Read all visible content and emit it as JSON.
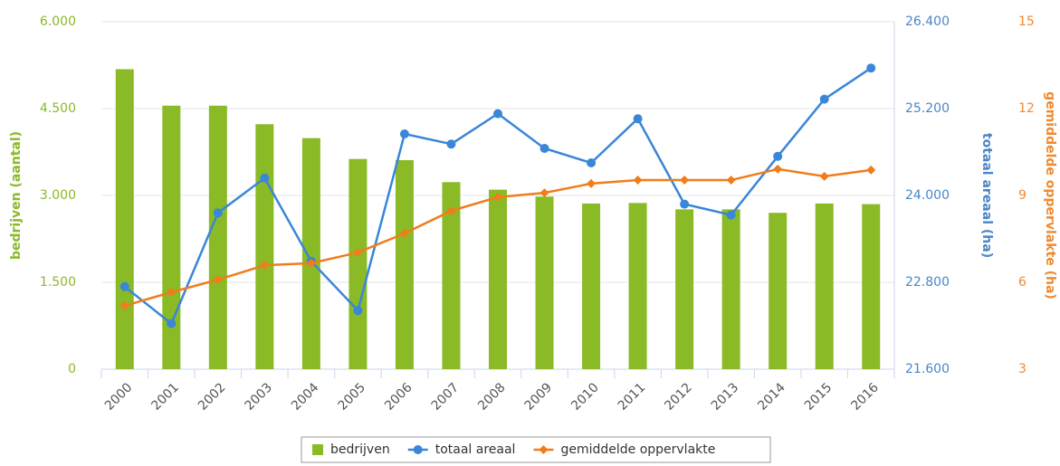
{
  "chart_data": {
    "type": "combo",
    "categories": [
      "2000",
      "2001",
      "2002",
      "2003",
      "2004",
      "2005",
      "2006",
      "2007",
      "2008",
      "2009",
      "2010",
      "2011",
      "2012",
      "2013",
      "2014",
      "2015",
      "2016"
    ],
    "y_label": "bedrijven (aantal)",
    "y2_label": "totaal areaal (ha)",
    "y3_label": "gemiddelde oppervlakte (ha)",
    "ylim": [
      0,
      6000
    ],
    "yticks": [
      0,
      {
        "value": 1500,
        "label": "1.500"
      },
      {
        "value": 3000,
        "label": "3.000"
      },
      {
        "value": 4500,
        "label": "4.500"
      },
      {
        "value": 6000,
        "label": "6.000"
      }
    ],
    "y2lim": [
      21600,
      26400
    ],
    "y2ticks": [
      {
        "value": 21600,
        "label": "21.600"
      },
      {
        "value": 22800,
        "label": "22.800"
      },
      {
        "value": 24000,
        "label": "24.000"
      },
      {
        "value": 25200,
        "label": "25.200"
      },
      {
        "value": 26400,
        "label": "26.400"
      }
    ],
    "y3lim": [
      3,
      15
    ],
    "y3ticks": [
      3,
      6,
      9,
      12,
      15
    ],
    "grid": true,
    "series": [
      {
        "name": "bedrijven",
        "type": "bar",
        "color": "#8aba26",
        "axis": "y",
        "values": [
          5180,
          4550,
          4550,
          4230,
          3990,
          3630,
          3610,
          3230,
          3100,
          2980,
          2860,
          2870,
          2760,
          2760,
          2700,
          2860,
          2850
        ]
      },
      {
        "name": "totaal areaal",
        "type": "line",
        "marker": "circle",
        "color": "#3a86d8",
        "axis": "y2",
        "values": [
          22740,
          22230,
          23760,
          24240,
          23090,
          22410,
          24850,
          24710,
          25130,
          24650,
          24450,
          25060,
          23880,
          23730,
          24540,
          25330,
          25760
        ]
      },
      {
        "name": "gemiddelde oppervlakte",
        "type": "line",
        "marker": "diamond",
        "color": "#f07d1c",
        "axis": "y3",
        "values": [
          5.19,
          5.66,
          6.09,
          6.59,
          6.66,
          7.03,
          7.69,
          8.47,
          8.94,
          9.09,
          9.41,
          9.53,
          9.53,
          9.53,
          9.91,
          9.66,
          9.88
        ]
      }
    ]
  }
}
